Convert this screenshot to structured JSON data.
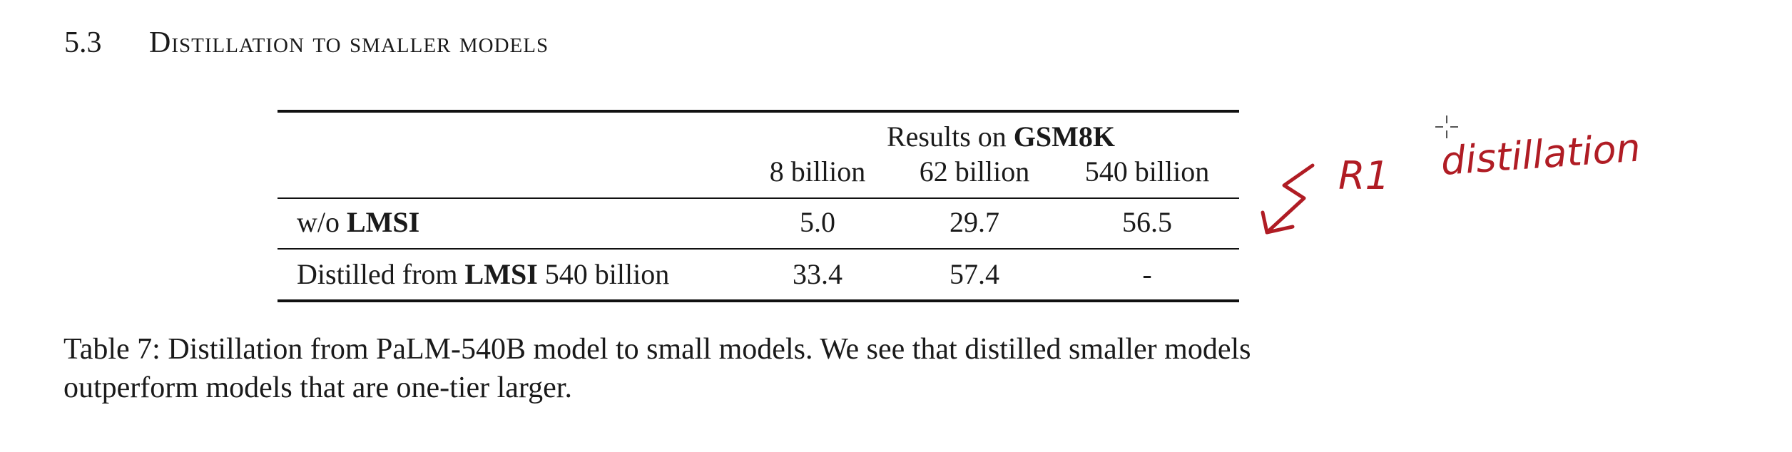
{
  "section": {
    "number": "5.3",
    "title": "Distillation to smaller models"
  },
  "table": {
    "group_header_prefix": "Results on",
    "group_header_bold": "GSM8K",
    "columns": [
      "8 billion",
      "62 billion",
      "540 billion"
    ],
    "rows": [
      {
        "label_prefix": "w/o",
        "label_bold": "LMSI",
        "label_suffix": "",
        "values": [
          "5.0",
          "29.7",
          "56.5"
        ]
      },
      {
        "label_prefix": "Distilled from",
        "label_bold": "LMSI",
        "label_suffix": "540 billion",
        "values": [
          "33.4",
          "57.4",
          "-"
        ]
      }
    ]
  },
  "caption": {
    "line1": "Table 7: Distillation from PaLM-540B model to small models. We see that distilled smaller models",
    "line2": "outperform models that are one-tier larger."
  },
  "annotation": {
    "label": "R1",
    "word": "distillation",
    "ink_color": "#b01c24"
  }
}
